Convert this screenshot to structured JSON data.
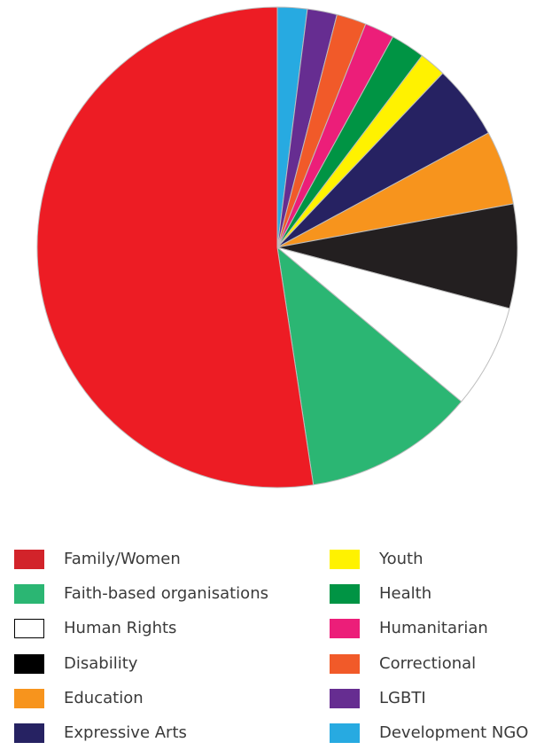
{
  "chart_data": {
    "type": "pie",
    "title": "",
    "legend_position": "bottom",
    "slices": [
      {
        "label": "Development NGO",
        "value": 2.0,
        "color": "#27aae1"
      },
      {
        "label": "LGBTI",
        "value": 2.0,
        "color": "#662d91"
      },
      {
        "label": "Correctional",
        "value": 2.0,
        "color": "#f15a29"
      },
      {
        "label": "Humanitarian",
        "value": 2.0,
        "color": "#ec1e79"
      },
      {
        "label": "Health",
        "value": 2.3,
        "color": "#009444"
      },
      {
        "label": "Youth",
        "value": 1.8,
        "color": "#fff200"
      },
      {
        "label": "Expressive Arts",
        "value": 5.0,
        "color": "#262262"
      },
      {
        "label": "Education",
        "value": 5.0,
        "color": "#f7941d"
      },
      {
        "label": "Disability",
        "value": 7.0,
        "color": "#231f20"
      },
      {
        "label": "Human Rights",
        "value": 7.0,
        "color": "#ffffff"
      },
      {
        "label": "Faith-based organisations",
        "value": 11.5,
        "color": "#2bb673"
      },
      {
        "label": "Family/Women",
        "value": 52.4,
        "color": "#ed1c24"
      }
    ],
    "legend": {
      "left": [
        {
          "label": "Family/Women",
          "color": "#d2232a"
        },
        {
          "label": "Faith-based organisations",
          "color": "#2bb673"
        },
        {
          "label": "Human Rights",
          "color": "#ffffff"
        },
        {
          "label": "Disability",
          "color": "#000000"
        },
        {
          "label": "Education",
          "color": "#f7941d"
        },
        {
          "label": "Expressive Arts",
          "color": "#262262"
        }
      ],
      "right": [
        {
          "label": "Youth",
          "color": "#fff200"
        },
        {
          "label": "Health",
          "color": "#009444"
        },
        {
          "label": "Humanitarian",
          "color": "#ec1e79"
        },
        {
          "label": "Correctional",
          "color": "#f15a29"
        },
        {
          "label": "LGBTI",
          "color": "#662d91"
        },
        {
          "label": "Development NGO",
          "color": "#27aae1"
        }
      ]
    }
  }
}
